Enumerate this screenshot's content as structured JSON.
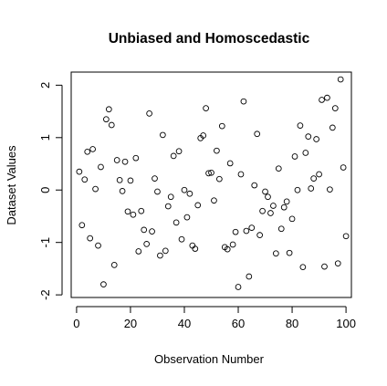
{
  "chart_data": {
    "type": "scatter",
    "title": "Unbiased and Homoscedastic",
    "xlabel": "Observation Number",
    "ylabel": "Dataset Values",
    "xlim": [
      -2,
      102
    ],
    "ylim": [
      -2.05,
      2.25
    ],
    "x_ticks": [
      0,
      20,
      40,
      60,
      80,
      100
    ],
    "y_ticks": [
      -2,
      -1,
      0,
      1,
      2
    ],
    "x_tick_labels": [
      "0",
      "20",
      "40",
      "60",
      "80",
      "100"
    ],
    "y_tick_labels": [
      "-2",
      "-1",
      "0",
      "1",
      "2"
    ],
    "grid": false,
    "marker": "open-circle",
    "x": [
      1,
      2,
      3,
      4,
      5,
      6,
      7,
      8,
      9,
      10,
      11,
      12,
      13,
      14,
      15,
      16,
      17,
      18,
      19,
      20,
      21,
      22,
      23,
      24,
      25,
      26,
      27,
      28,
      29,
      30,
      31,
      32,
      33,
      34,
      35,
      36,
      37,
      38,
      39,
      40,
      41,
      42,
      43,
      44,
      45,
      46,
      47,
      48,
      49,
      50,
      51,
      52,
      53,
      54,
      55,
      56,
      57,
      58,
      59,
      60,
      61,
      62,
      63,
      64,
      65,
      66,
      67,
      68,
      69,
      70,
      71,
      72,
      73,
      74,
      75,
      76,
      77,
      78,
      79,
      80,
      81,
      82,
      83,
      84,
      85,
      86,
      87,
      88,
      89,
      90,
      91,
      92,
      93,
      94,
      95,
      96,
      97,
      98,
      99,
      100
    ],
    "y": [
      0.35,
      -0.67,
      0.2,
      0.73,
      -0.92,
      0.78,
      0.02,
      -1.06,
      0.44,
      -1.8,
      1.35,
      1.54,
      1.24,
      -1.43,
      0.57,
      0.19,
      -0.02,
      0.54,
      -0.41,
      0.18,
      -0.47,
      0.61,
      -1.17,
      -0.4,
      -0.76,
      -1.03,
      1.46,
      -0.79,
      0.22,
      -0.03,
      -1.25,
      1.05,
      -1.16,
      -0.31,
      -0.13,
      0.65,
      -0.62,
      0.74,
      -0.94,
      0.0,
      -0.52,
      -0.07,
      -1.06,
      -1.12,
      -0.29,
      0.99,
      1.04,
      1.56,
      0.32,
      0.33,
      -0.2,
      0.75,
      0.21,
      1.22,
      -1.09,
      -1.13,
      0.51,
      -1.04,
      -0.8,
      -1.85,
      0.3,
      1.69,
      -0.78,
      -1.65,
      -0.72,
      0.09,
      1.07,
      -0.86,
      -0.4,
      -0.03,
      -0.13,
      -0.44,
      -0.3,
      -1.21,
      0.41,
      -0.74,
      -0.33,
      -0.22,
      -1.2,
      -0.55,
      0.64,
      0.0,
      1.23,
      -1.47,
      0.71,
      1.02,
      0.03,
      0.22,
      0.97,
      0.3,
      1.72,
      -1.46,
      1.76,
      0.01,
      1.19,
      1.56,
      -1.4,
      2.11,
      0.43,
      -0.88
    ]
  }
}
